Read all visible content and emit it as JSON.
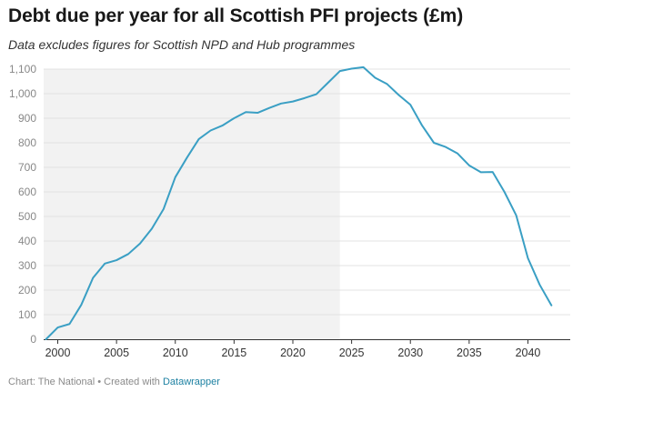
{
  "header": {
    "title": "Debt due per year for all Scottish PFI projects (£m)",
    "subtitle": "Data excludes figures for Scottish NPD and Hub programmes"
  },
  "footer": {
    "source_text": "Chart: The National • Created with ",
    "link_label": "Datawrapper"
  },
  "colors": {
    "line": "#3a9fc4",
    "shaded_region": "#f2f2f2",
    "grid": "#e3e3e3",
    "axis": "#333333"
  },
  "chart_data": {
    "type": "line",
    "title": "Debt due per year for all Scottish PFI projects (£m)",
    "subtitle": "Data excludes figures for Scottish NPD and Hub programmes",
    "xlabel": "",
    "ylabel": "",
    "xlim": [
      1998.8,
      2043.6
    ],
    "ylim": [
      0,
      1100
    ],
    "grid": true,
    "y_ticks": [
      0,
      100,
      200,
      300,
      400,
      500,
      600,
      700,
      800,
      900,
      1000,
      1100
    ],
    "y_tick_labels": [
      "0",
      "100",
      "200",
      "300",
      "400",
      "500",
      "600",
      "700",
      "800",
      "900",
      "1,000",
      "1,100"
    ],
    "x_ticks": [
      2000,
      2005,
      2010,
      2015,
      2020,
      2025,
      2030,
      2035,
      2040
    ],
    "x_tick_labels": [
      "2000",
      "2005",
      "2010",
      "2015",
      "2020",
      "2025",
      "2030",
      "2035",
      "2040"
    ],
    "shaded_range": [
      1998.8,
      2024
    ],
    "series": [
      {
        "x": [
          1999,
          2000,
          2001,
          2002,
          2003,
          2004,
          2005,
          2006,
          2007,
          2008,
          2009,
          2010,
          2011,
          2012,
          2013,
          2014,
          2015,
          2016,
          2017,
          2018,
          2019,
          2020,
          2021,
          2022,
          2023,
          2024,
          2025,
          2026,
          2027,
          2028,
          2029,
          2030,
          2031,
          2032,
          2033,
          2034,
          2035,
          2036,
          2037,
          2038,
          2039,
          2040,
          2041,
          2042
        ],
        "values": [
          0,
          48,
          62,
          140,
          250,
          308,
          322,
          347,
          390,
          450,
          530,
          660,
          740,
          815,
          850,
          870,
          900,
          925,
          922,
          942,
          960,
          968,
          982,
          998,
          1045,
          1092,
          1102,
          1108,
          1065,
          1040,
          995,
          955,
          870,
          800,
          783,
          757,
          708,
          680,
          681,
          600,
          505,
          330,
          222,
          138
        ]
      }
    ]
  }
}
